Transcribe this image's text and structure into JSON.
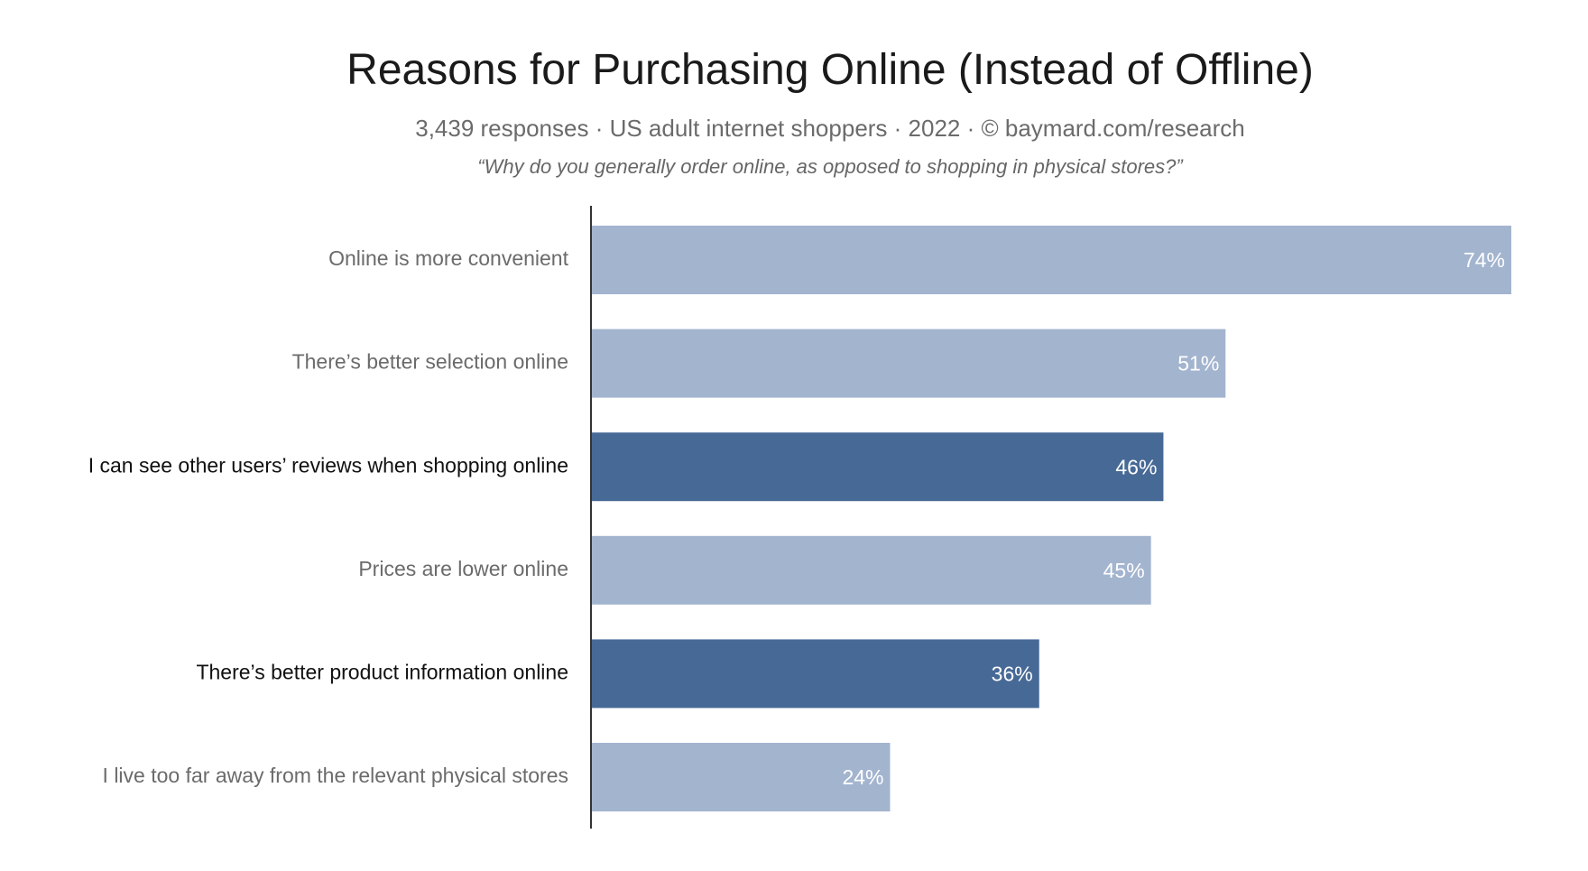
{
  "header": {
    "title": "Reasons for Purchasing Online (Instead of Offline)",
    "subtitle": "3,439 responses  ·  US adult internet shoppers ·  2022  ·  ©  baymard.com/research",
    "question": "“Why do you generally order online, as opposed to shopping in physical stores?”"
  },
  "colors": {
    "bar_light": "#a3b4cf",
    "bar_highlight": "#476996",
    "label_muted": "#6b6b6b",
    "label_strong": "#111111",
    "axis": "#333333"
  },
  "chart_data": {
    "type": "bar",
    "orientation": "horizontal",
    "title": "Reasons for Purchasing Online (Instead of Offline)",
    "categories": [
      "Online is more convenient",
      "There’s better selection online",
      "I can see other users’ reviews when shopping online",
      "Prices are lower online",
      "There’s better product information online",
      "I live too far away from the relevant physical stores"
    ],
    "values": [
      74,
      51,
      46,
      45,
      36,
      24
    ],
    "value_labels": [
      "74%",
      "51%",
      "46%",
      "45%",
      "36%",
      "24%"
    ],
    "highlighted": [
      false,
      false,
      true,
      false,
      true,
      false
    ],
    "xlim": [
      0,
      74
    ],
    "grid": false,
    "legend": "none"
  }
}
